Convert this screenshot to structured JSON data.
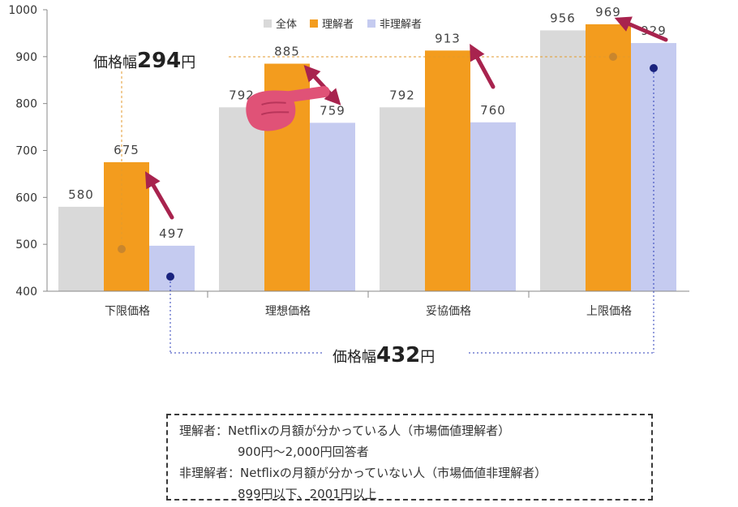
{
  "chart_data": {
    "type": "bar",
    "categories": [
      "下限価格",
      "理想価格",
      "妥協価格",
      "上限価格"
    ],
    "series": [
      {
        "name": "全体",
        "values": [
          580,
          792,
          792,
          956
        ],
        "color": "#d9d9d9"
      },
      {
        "name": "理解者",
        "values": [
          675,
          885,
          913,
          969
        ],
        "color": "#f39c1e"
      },
      {
        "name": "非理解者",
        "values": [
          497,
          759,
          760,
          929
        ],
        "color": "#c5cbf0"
      }
    ],
    "ylim": [
      400,
      1000
    ],
    "yticks": [
      400,
      500,
      600,
      700,
      800,
      900,
      1000
    ],
    "grid": false,
    "legend_position": "top-center"
  },
  "annotations": {
    "range_top_prefix": "価格幅",
    "range_top_value": "294",
    "range_top_suffix": "円",
    "range_bottom_prefix": "価格幅",
    "range_bottom_value": "432",
    "range_bottom_suffix": "円",
    "arrow_color": "#a8234e",
    "dot_orange": "#c9862d",
    "dot_navy": "#1a237e"
  },
  "note": {
    "line1": "理解者：Netflixの月額が分かっている人（市場価値理解者）",
    "line2": "900円～2,000円回答者",
    "line3": "非理解者：Netflixの月額が分かっていない人（市場価値非理解者）",
    "line4": "899円以下、2001円以上"
  }
}
